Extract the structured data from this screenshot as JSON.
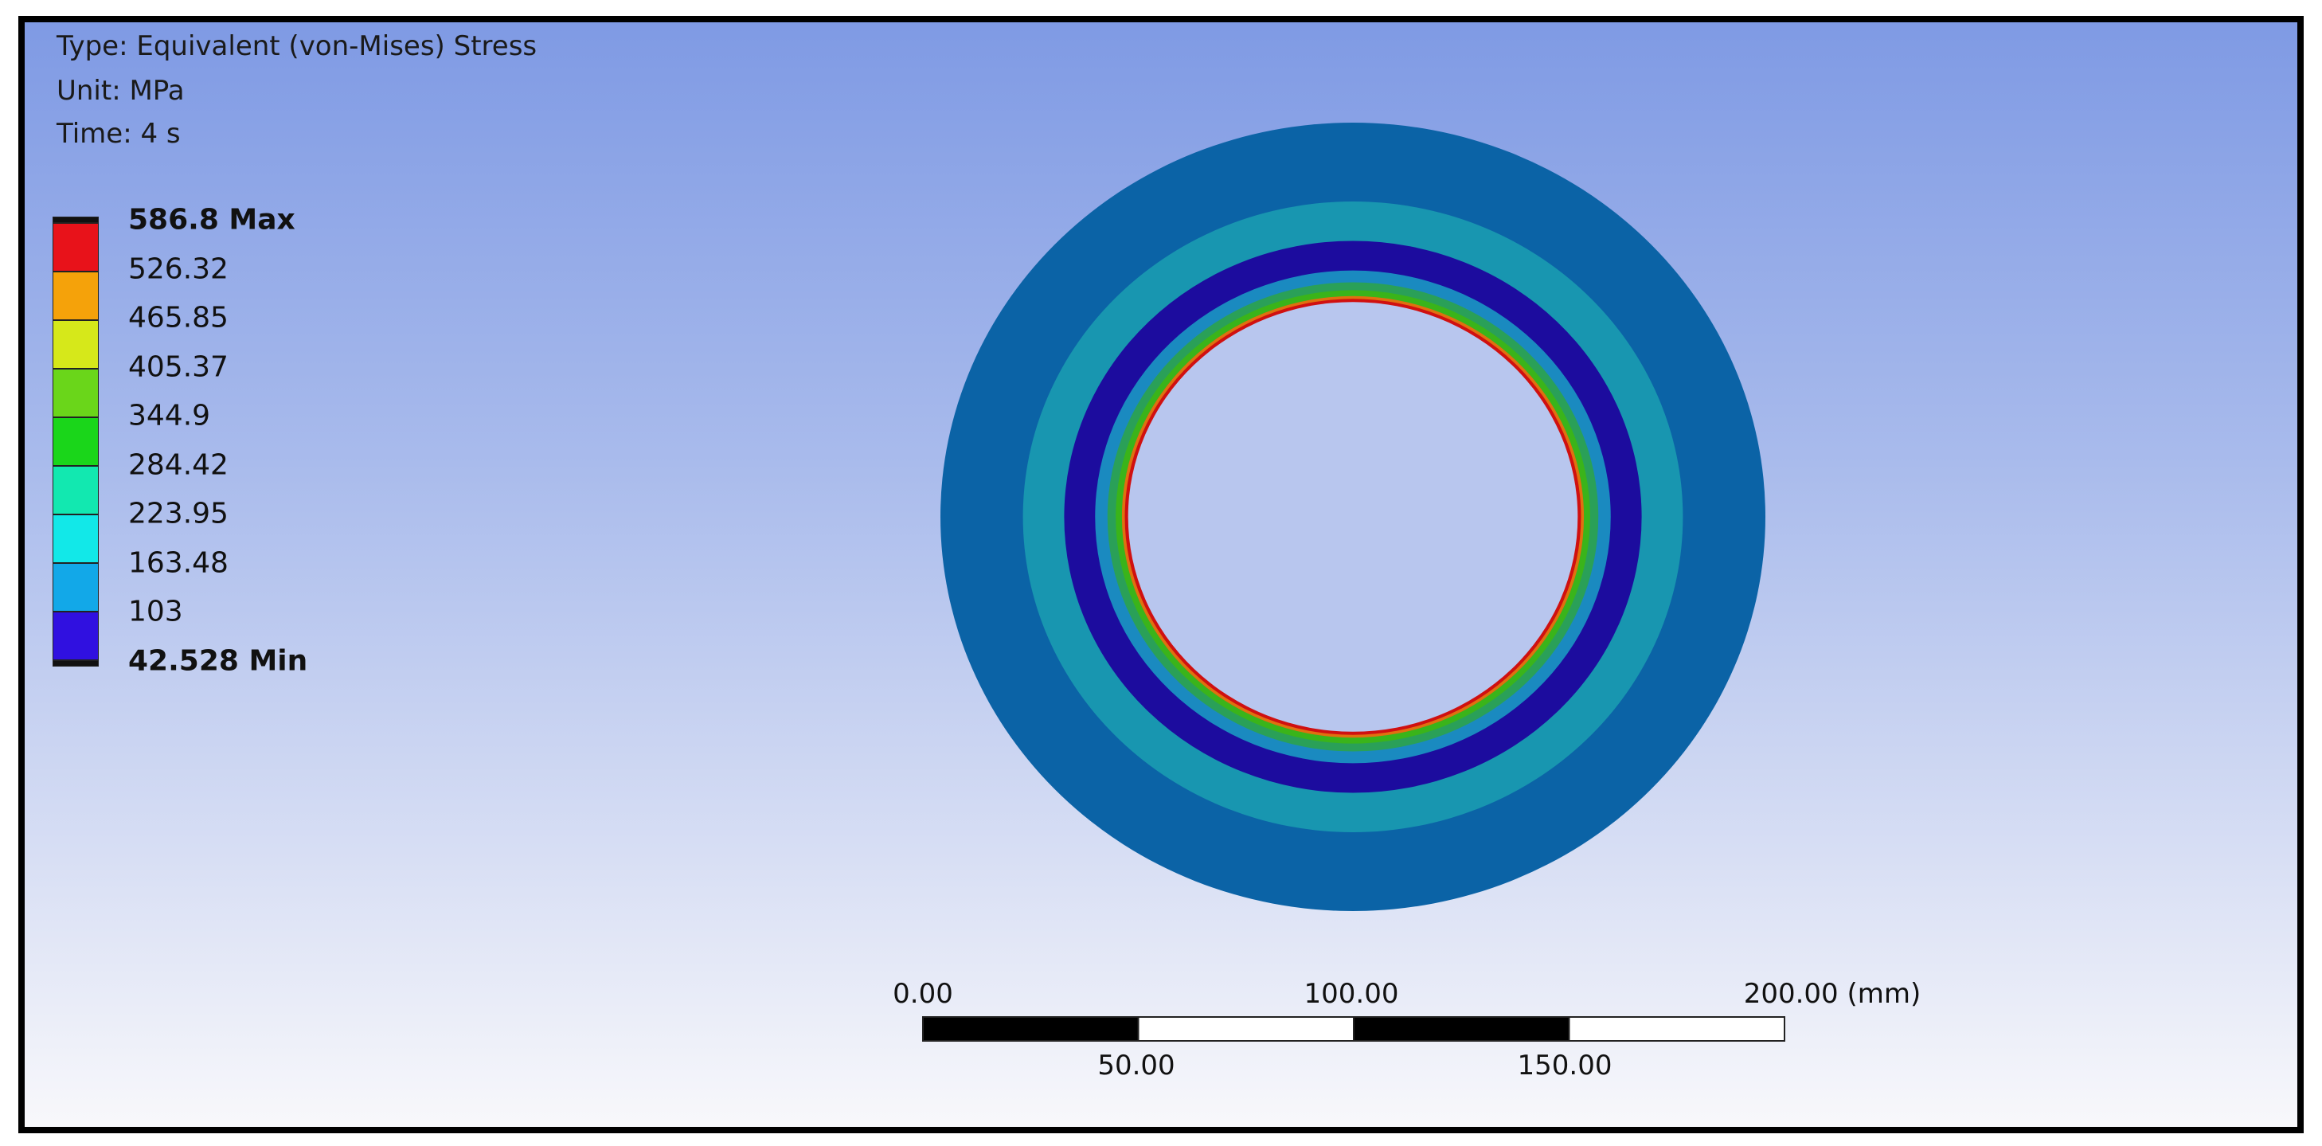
{
  "header": {
    "type": "Type: Equivalent (von-Mises) Stress",
    "unit": "Unit: MPa",
    "time": "Time: 4 s"
  },
  "legend": {
    "labels": [
      "586.8 Max",
      "526.32",
      "465.85",
      "405.37",
      "344.9",
      "284.42",
      "223.95",
      "163.48",
      "103",
      "42.528 Min"
    ],
    "colors": [
      "#e8121a",
      "#f5a20a",
      "#d6e81a",
      "#6ad61a",
      "#1ad61a",
      "#12e8b0",
      "#12e8e8",
      "#12a8e8",
      "#3010e0"
    ]
  },
  "contour": {
    "ring_colors": [
      "#0b63a6",
      "#1896b0",
      "#1c0c9e",
      "#1a8ac0",
      "#2aa058",
      "#3ab41a",
      "#e07010",
      "#d01010"
    ]
  },
  "scale_bar": {
    "top_labels": [
      "0.00",
      "100.00",
      "200.00 (mm)"
    ],
    "bottom_labels": [
      "50.00",
      "150.00"
    ]
  }
}
